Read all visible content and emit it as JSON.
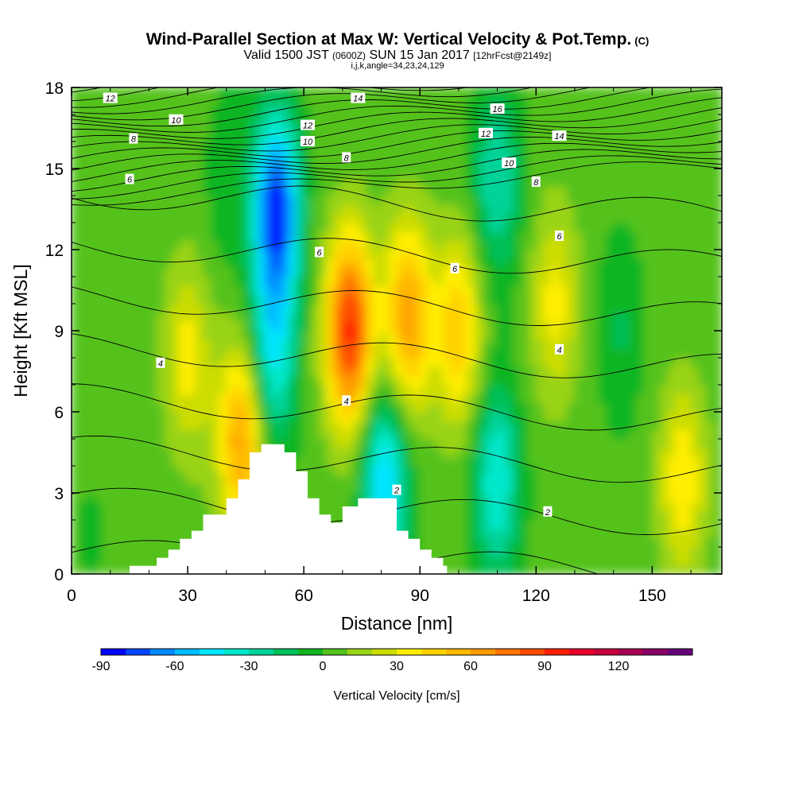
{
  "header": {
    "title": "Wind-Parallel Section at Max W: Vertical Velocity & Pot.Temp.",
    "copyright": "(C)",
    "valid_prefix": "Valid 1500 JST",
    "valid_zulu": "(0600Z)",
    "valid_date": "SUN 15 Jan 2017",
    "forecast": "[12hrFcst@2149z]",
    "ijk": "i,j,k,angle=34,23,24,129"
  },
  "chart_data": {
    "type": "heatmap",
    "xlabel": "Distance [nm]",
    "ylabel": "Height [Kft MSL]",
    "xlim": [
      0,
      168
    ],
    "ylim": [
      0,
      18
    ],
    "x_ticks": [
      0,
      30,
      60,
      90,
      120,
      150
    ],
    "y_ticks": [
      0,
      3,
      6,
      9,
      12,
      15,
      18
    ],
    "grid": false,
    "colorbar": {
      "label": "Vertical Velocity [cm/s]",
      "min": -90,
      "step": 10,
      "tick_values": [
        -90,
        -60,
        -30,
        0,
        30,
        60,
        90,
        120
      ],
      "colors": [
        "#0000ff",
        "#0044ff",
        "#0088ff",
        "#00bbff",
        "#00e5ff",
        "#00e8cc",
        "#00d39a",
        "#00c05a",
        "#11b520",
        "#55c21e",
        "#99d315",
        "#ccdd00",
        "#ffee00",
        "#ffd200",
        "#ffb800",
        "#ff9a00",
        "#ff7400",
        "#ff4a00",
        "#ff1e00",
        "#e8002a",
        "#c8003c",
        "#a80050",
        "#880068",
        "#66007a"
      ]
    },
    "velocity_features": [
      {
        "x": 53,
        "y": 13.5,
        "w": -85
      },
      {
        "x": 52,
        "y": 8,
        "w": -45
      },
      {
        "x": 72,
        "y": 9,
        "w": 90
      },
      {
        "x": 87,
        "y": 9.5,
        "w": 60
      },
      {
        "x": 100,
        "y": 9,
        "w": 45
      },
      {
        "x": 44,
        "y": 5,
        "w": 60
      },
      {
        "x": 30,
        "y": 8,
        "w": 30
      },
      {
        "x": 81,
        "y": 3.5,
        "w": -55
      },
      {
        "x": 110,
        "y": 3.5,
        "w": -45
      },
      {
        "x": 110,
        "y": 14.5,
        "w": -35
      },
      {
        "x": 125,
        "y": 10,
        "w": 30
      },
      {
        "x": 158,
        "y": 3.5,
        "w": 35
      },
      {
        "x": 142,
        "y": 9,
        "w": -15
      },
      {
        "x": 40,
        "y": 14.5,
        "w": -10
      },
      {
        "x": 5,
        "y": 1.5,
        "w": -5
      }
    ],
    "theta_contour_labels": [
      {
        "text": "12",
        "x": 10,
        "y": 17.6
      },
      {
        "text": "14",
        "x": 74,
        "y": 17.6
      },
      {
        "text": "16",
        "x": 110,
        "y": 17.2
      },
      {
        "text": "10",
        "x": 27,
        "y": 16.8
      },
      {
        "text": "12",
        "x": 61,
        "y": 16.6
      },
      {
        "text": "12",
        "x": 107,
        "y": 16.3
      },
      {
        "text": "14",
        "x": 126,
        "y": 16.2
      },
      {
        "text": "8",
        "x": 16,
        "y": 16.1
      },
      {
        "text": "10",
        "x": 61,
        "y": 16.0
      },
      {
        "text": "8",
        "x": 71,
        "y": 15.4
      },
      {
        "text": "10",
        "x": 113,
        "y": 15.2
      },
      {
        "text": "6",
        "x": 15,
        "y": 14.6
      },
      {
        "text": "8",
        "x": 120,
        "y": 14.5
      },
      {
        "text": "6",
        "x": 126,
        "y": 12.5
      },
      {
        "text": "6",
        "x": 64,
        "y": 11.9
      },
      {
        "text": "6",
        "x": 99,
        "y": 11.3
      },
      {
        "text": "4",
        "x": 23,
        "y": 7.8
      },
      {
        "text": "4",
        "x": 126,
        "y": 8.3
      },
      {
        "text": "4",
        "x": 71,
        "y": 6.4
      },
      {
        "text": "2",
        "x": 84,
        "y": 3.1
      },
      {
        "text": "2",
        "x": 123,
        "y": 2.3
      }
    ],
    "terrain_profile": [
      [
        15,
        0
      ],
      [
        15,
        0.3
      ],
      [
        22,
        0.3
      ],
      [
        22,
        0.6
      ],
      [
        25,
        0.6
      ],
      [
        25,
        0.9
      ],
      [
        28,
        0.9
      ],
      [
        28,
        1.3
      ],
      [
        31,
        1.3
      ],
      [
        31,
        1.6
      ],
      [
        34,
        1.6
      ],
      [
        34,
        2.2
      ],
      [
        40,
        2.2
      ],
      [
        40,
        2.8
      ],
      [
        43,
        2.8
      ],
      [
        43,
        3.5
      ],
      [
        46,
        3.5
      ],
      [
        46,
        4.5
      ],
      [
        49,
        4.5
      ],
      [
        49,
        4.8
      ],
      [
        55,
        4.8
      ],
      [
        55,
        4.5
      ],
      [
        58,
        4.5
      ],
      [
        58,
        3.8
      ],
      [
        61,
        3.8
      ],
      [
        61,
        2.8
      ],
      [
        64,
        2.8
      ],
      [
        64,
        2.2
      ],
      [
        67,
        2.2
      ],
      [
        67,
        1.9
      ],
      [
        70,
        1.9
      ],
      [
        70,
        2.5
      ],
      [
        74,
        2.5
      ],
      [
        74,
        2.8
      ],
      [
        84,
        2.8
      ],
      [
        84,
        1.6
      ],
      [
        87,
        1.6
      ],
      [
        87,
        1.3
      ],
      [
        90,
        1.3
      ],
      [
        90,
        0.9
      ],
      [
        93,
        0.9
      ],
      [
        93,
        0.6
      ],
      [
        96,
        0.6
      ],
      [
        96,
        0.3
      ],
      [
        97,
        0.3
      ],
      [
        97,
        0
      ]
    ]
  }
}
